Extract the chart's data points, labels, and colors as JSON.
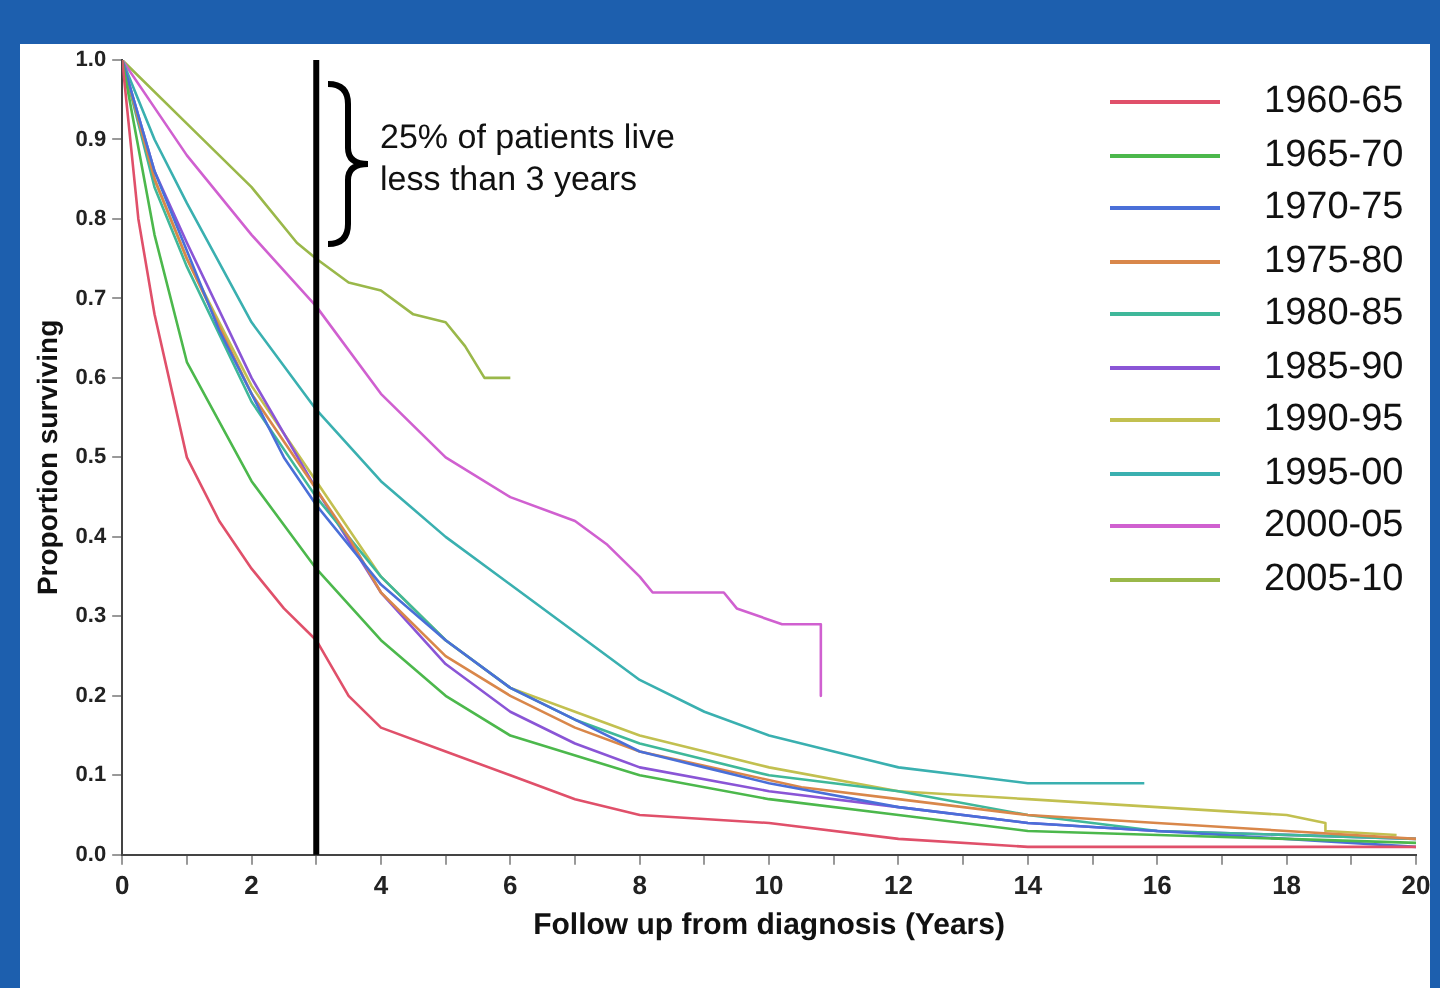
{
  "chart_data": {
    "type": "line",
    "xlabel": "Follow up from diagnosis (Years)",
    "ylabel": "Proportion surviving",
    "xlim": [
      0,
      20
    ],
    "xticks": [
      0,
      {
        "value": 1,
        "label": null
      },
      2,
      {
        "value": 3,
        "label": null
      },
      4,
      {
        "value": 5,
        "label": null
      },
      6,
      {
        "value": 7,
        "label": null
      },
      8,
      {
        "value": 9,
        "label": null
      },
      10,
      {
        "value": 11,
        "label": null
      },
      12,
      {
        "value": 13,
        "label": null
      },
      14,
      {
        "value": 15,
        "label": null
      },
      16,
      {
        "value": 17,
        "label": null
      },
      18,
      {
        "value": 19,
        "label": null
      },
      20
    ],
    "ylim": [
      0,
      1
    ],
    "yticks": [
      {
        "value": 0,
        "label": "0.0"
      },
      0.1,
      0.2,
      0.3,
      0.4,
      0.5,
      0.6,
      0.7,
      0.8,
      0.9,
      {
        "value": 1,
        "label": "1.0"
      }
    ],
    "grid": false,
    "legend": "top right",
    "marker": "none",
    "line_style": "solid",
    "series": [
      {
        "name": "1960-65",
        "color": "#e0506a",
        "x": [
          0,
          0.25,
          0.5,
          1,
          1.5,
          2,
          2.5,
          3,
          3.5,
          4,
          5,
          6,
          7,
          8,
          10,
          12,
          14,
          20
        ],
        "values": [
          1,
          0.8,
          0.68,
          0.5,
          0.42,
          0.36,
          0.31,
          0.27,
          0.2,
          0.16,
          0.13,
          0.1,
          0.07,
          0.05,
          0.04,
          0.02,
          0.01,
          0.01
        ]
      },
      {
        "name": "1965-70",
        "color": "#4cb84c",
        "x": [
          0,
          0.5,
          1,
          2,
          3,
          4,
          5,
          6,
          8,
          10,
          12,
          14,
          20
        ],
        "values": [
          1,
          0.78,
          0.62,
          0.47,
          0.36,
          0.27,
          0.2,
          0.15,
          0.1,
          0.07,
          0.05,
          0.03,
          0.015
        ]
      },
      {
        "name": "1970-75",
        "color": "#4a6fd8",
        "x": [
          0,
          0.5,
          1,
          1.5,
          2,
          2.5,
          3,
          3.5,
          4,
          5,
          6,
          7,
          8,
          9,
          10,
          12,
          14,
          16,
          18,
          20
        ],
        "values": [
          1,
          0.86,
          0.76,
          0.66,
          0.58,
          0.5,
          0.44,
          0.39,
          0.34,
          0.27,
          0.21,
          0.17,
          0.13,
          0.11,
          0.09,
          0.06,
          0.04,
          0.03,
          0.02,
          0.01
        ]
      },
      {
        "name": "1975-80",
        "color": "#d9874a",
        "x": [
          0,
          0.5,
          1,
          2,
          3,
          3.5,
          4,
          5,
          6,
          7,
          8,
          10.5,
          12,
          14,
          16,
          18,
          20
        ],
        "values": [
          1,
          0.85,
          0.75,
          0.58,
          0.46,
          0.4,
          0.33,
          0.25,
          0.2,
          0.16,
          0.13,
          0.085,
          0.07,
          0.05,
          0.04,
          0.03,
          0.02
        ]
      },
      {
        "name": "1980-85",
        "color": "#3fb89a",
        "x": [
          0,
          0.5,
          1,
          2,
          3,
          4,
          5,
          6,
          7,
          8,
          10,
          12,
          14,
          16,
          20
        ],
        "values": [
          1,
          0.84,
          0.74,
          0.57,
          0.45,
          0.35,
          0.27,
          0.21,
          0.17,
          0.14,
          0.1,
          0.08,
          0.05,
          0.03,
          0.02
        ]
      },
      {
        "name": "1985-90",
        "color": "#8a55d6",
        "x": [
          0,
          0.5,
          1,
          2,
          3,
          4,
          5,
          6,
          7,
          8,
          10,
          12,
          14,
          16,
          20
        ],
        "values": [
          1,
          0.86,
          0.77,
          0.6,
          0.46,
          0.33,
          0.24,
          0.18,
          0.14,
          0.11,
          0.08,
          0.06,
          0.04,
          0.03,
          0.02
        ]
      },
      {
        "name": "1990-95",
        "color": "#c2c050",
        "x": [
          0,
          0.5,
          1,
          2,
          3,
          4,
          5,
          6,
          7,
          8,
          10,
          12,
          14,
          16,
          18,
          18.6,
          18.6,
          19.7
        ],
        "values": [
          1,
          0.85,
          0.75,
          0.59,
          0.47,
          0.35,
          0.27,
          0.21,
          0.18,
          0.15,
          0.11,
          0.08,
          0.07,
          0.06,
          0.05,
          0.04,
          0.03,
          0.025
        ]
      },
      {
        "name": "1995-00",
        "color": "#3ab0b0",
        "x": [
          0,
          0.5,
          1,
          2,
          3,
          4,
          5,
          6,
          7,
          8,
          9,
          10,
          11,
          12,
          13,
          14,
          15.8
        ],
        "values": [
          1,
          0.9,
          0.82,
          0.67,
          0.56,
          0.47,
          0.4,
          0.34,
          0.28,
          0.22,
          0.18,
          0.15,
          0.13,
          0.11,
          0.1,
          0.09,
          0.09
        ]
      },
      {
        "name": "2000-05",
        "color": "#d060d0",
        "x": [
          0,
          1,
          2,
          3,
          4,
          5,
          6,
          7,
          7.5,
          8,
          8.2,
          9.3,
          9.5,
          10.2,
          10.8,
          10.8
        ],
        "values": [
          1,
          0.88,
          0.78,
          0.69,
          0.58,
          0.5,
          0.45,
          0.42,
          0.39,
          0.35,
          0.33,
          0.33,
          0.31,
          0.29,
          0.29,
          0.2
        ]
      },
      {
        "name": "2005-10",
        "color": "#9ab84a",
        "x": [
          0,
          1,
          2,
          2.7,
          3,
          3.5,
          4,
          4.5,
          5,
          5.3,
          5.6,
          6
        ],
        "values": [
          1,
          0.92,
          0.84,
          0.77,
          0.75,
          0.72,
          0.71,
          0.68,
          0.67,
          0.64,
          0.6,
          0.6
        ]
      }
    ],
    "ref_lines": [
      {
        "axis": "x",
        "value": 3,
        "color": "#000000"
      }
    ],
    "annotations": [
      "25% of patients live less than 3 years"
    ]
  }
}
